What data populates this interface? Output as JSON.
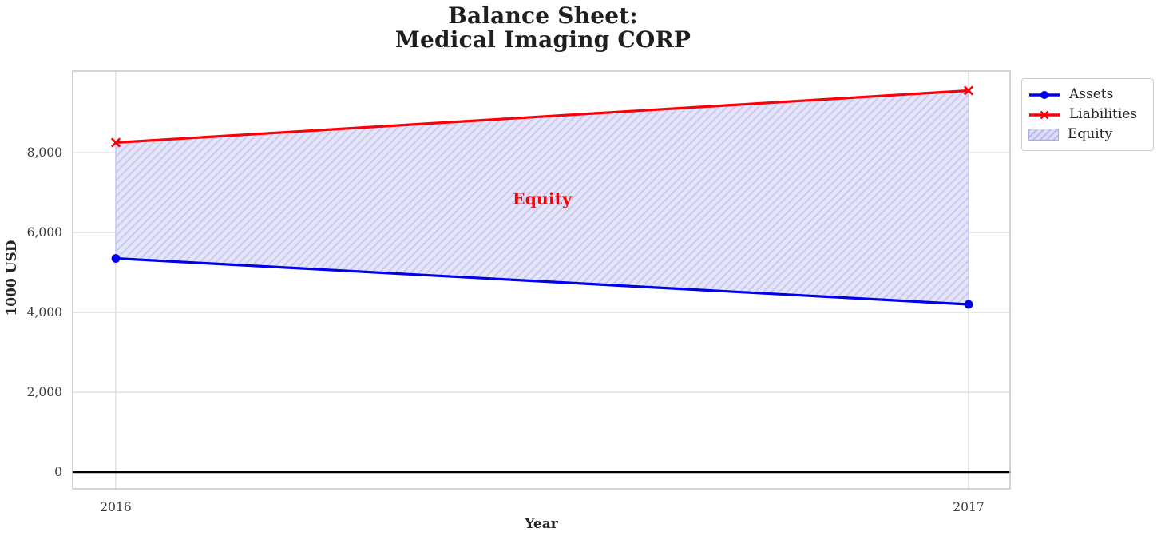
{
  "title": {
    "line1": "Balance Sheet:",
    "line2": "Medical Imaging CORP"
  },
  "chart_data": {
    "type": "area",
    "title": "Balance Sheet: Medical Imaging CORP",
    "x": [
      2016,
      2017
    ],
    "xtick_labels": [
      "2016",
      "2017"
    ],
    "series": [
      {
        "name": "Assets",
        "values": [
          5350,
          4200
        ],
        "color": "#0000ee",
        "marker": "circle"
      },
      {
        "name": "Liabilities",
        "values": [
          8250,
          9550
        ],
        "color": "#fb0006",
        "marker": "x"
      }
    ],
    "fill_between": {
      "name": "Equity",
      "upper": "Liabilities",
      "lower": "Assets",
      "fill_color": "#e5e5f9",
      "hatch_color": "#c8c8f1",
      "hatch": "/"
    },
    "annotation": {
      "text": "Equity",
      "x_frac": 0.5,
      "y": 6840,
      "color": "#fb0006"
    },
    "xlabel": "Year",
    "ylabel": "1000 USD",
    "yticks": [
      0,
      2000,
      4000,
      6000,
      8000
    ],
    "ytick_labels": [
      "0",
      "2,000",
      "4,000",
      "6,000",
      "8,000"
    ],
    "ylim": [
      -440,
      10060
    ],
    "grid": true,
    "zero_line": true,
    "legend_position": "outside-right-top"
  },
  "legend": {
    "items": [
      {
        "label": "Assets"
      },
      {
        "label": "Liabilities"
      },
      {
        "label": "Equity"
      }
    ]
  }
}
